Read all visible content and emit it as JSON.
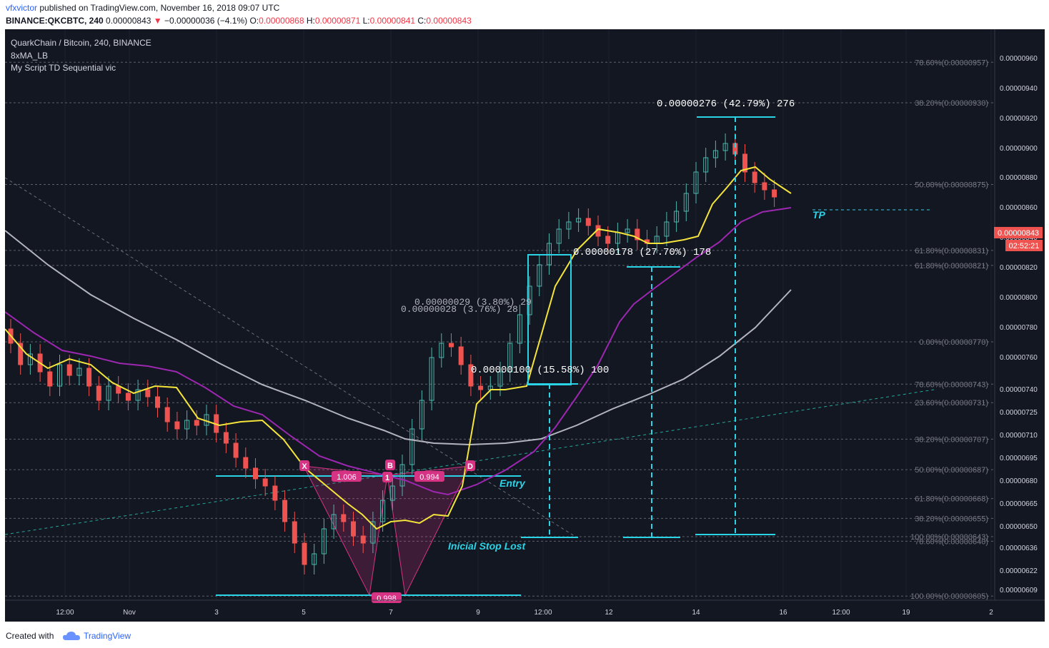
{
  "header": {
    "author": "vfxvictor",
    "published_text": " published on TradingView.com, November 16, 2018 09:07 UTC",
    "symbol_line": "BINANCE:QKCBTC, 240",
    "last": "0.00000843",
    "change": "−0.00000036 (−4.1%)",
    "open_label": "O:",
    "open": "0.00000868",
    "high_label": "H:",
    "high": "0.00000871",
    "low_label": "L:",
    "low": "0.00000841",
    "close_label": "C:",
    "close": "0.00000843"
  },
  "legend": {
    "title": "QuarkChain / Bitcoin, 240, BINANCE",
    "ind1": "8xMA_LB",
    "ind2": "My Script TD Sequential vic"
  },
  "chart_data": {
    "type": "candlestick",
    "y_axis": {
      "ticks": [
        "0.00000960",
        "0.00000940",
        "0.00000920",
        "0.00000900",
        "0.00000880",
        "0.00000860",
        "0.00000840",
        "0.00000820",
        "0.00000800",
        "0.00000780",
        "0.00000760",
        "0.00000740",
        "0.00000725",
        "0.00000710",
        "0.00000695",
        "0.00000680",
        "0.00000665",
        "0.00000650",
        "0.00000636",
        "0.00000622",
        "0.00000609"
      ]
    },
    "x_axis": {
      "ticks": [
        "12:00",
        "Nov",
        "3",
        "5",
        "7",
        "9",
        "12:00",
        "12",
        "14",
        "16",
        "12:00",
        "19",
        "2"
      ]
    },
    "price_label": "0.00000843",
    "countdown": "02:52:21",
    "fib_levels": [
      {
        "text": "78.60%(0.00000957)",
        "price": 957
      },
      {
        "text": "38.20%(0.00000930)",
        "price": 930
      },
      {
        "text": "50.00%(0.00000875)",
        "price": 875
      },
      {
        "text": "61.80%(0.00000831)",
        "price": 831
      },
      {
        "text": "61.80%(0.00000821)",
        "price": 821
      },
      {
        "text": "0.00%(0.00000770)",
        "price": 770
      },
      {
        "text": "78.60%(0.00000743)",
        "price": 743
      },
      {
        "text": "23.60%(0.00000731)",
        "price": 731
      },
      {
        "text": "38.20%(0.00000707)",
        "price": 707
      },
      {
        "text": "50.00%(0.00000687)",
        "price": 687
      },
      {
        "text": "61.80%(0.00000668)",
        "price": 668
      },
      {
        "text": "38.20%(0.00000655)",
        "price": 655
      },
      {
        "text": "100.00%(0.00000643)",
        "price": 643
      },
      {
        "text": "78.60%(0.00000640)",
        "price": 640
      },
      {
        "text": "100.00%(0.00000605)",
        "price": 605
      }
    ],
    "measures": [
      {
        "text": "0.00000276 (42.79%) 276"
      },
      {
        "text": "0.00000178 (27.70%) 178"
      },
      {
        "text": "0.00000100 (15.58%) 100"
      },
      {
        "text": "0.00000029 (3.80%) 29"
      },
      {
        "text": "0.00000028 (3.76%) 28"
      }
    ],
    "pattern_points": {
      "x": "X",
      "b": "B",
      "d": "D",
      "a": "1",
      "ratio_xb": "1.006",
      "ratio_bd": "0.994",
      "ratio_bottom": "0.998"
    },
    "annotations": {
      "entry": "Entry",
      "stop": "Inicial Stop Lost",
      "tp": "TP"
    },
    "colors": {
      "background": "#131722",
      "up": "#4db6ac",
      "down": "#ef5350",
      "ma_fast": "#f4e43b",
      "ma_mid": "#9c27b0",
      "ma_slow": "#b2b5be",
      "accent": "#2ad4e6",
      "pattern": "#d63384"
    }
  },
  "footer": {
    "created": "Created with",
    "brand": "TradingView",
    "logo_icon": "tradingview-cloud-icon"
  }
}
